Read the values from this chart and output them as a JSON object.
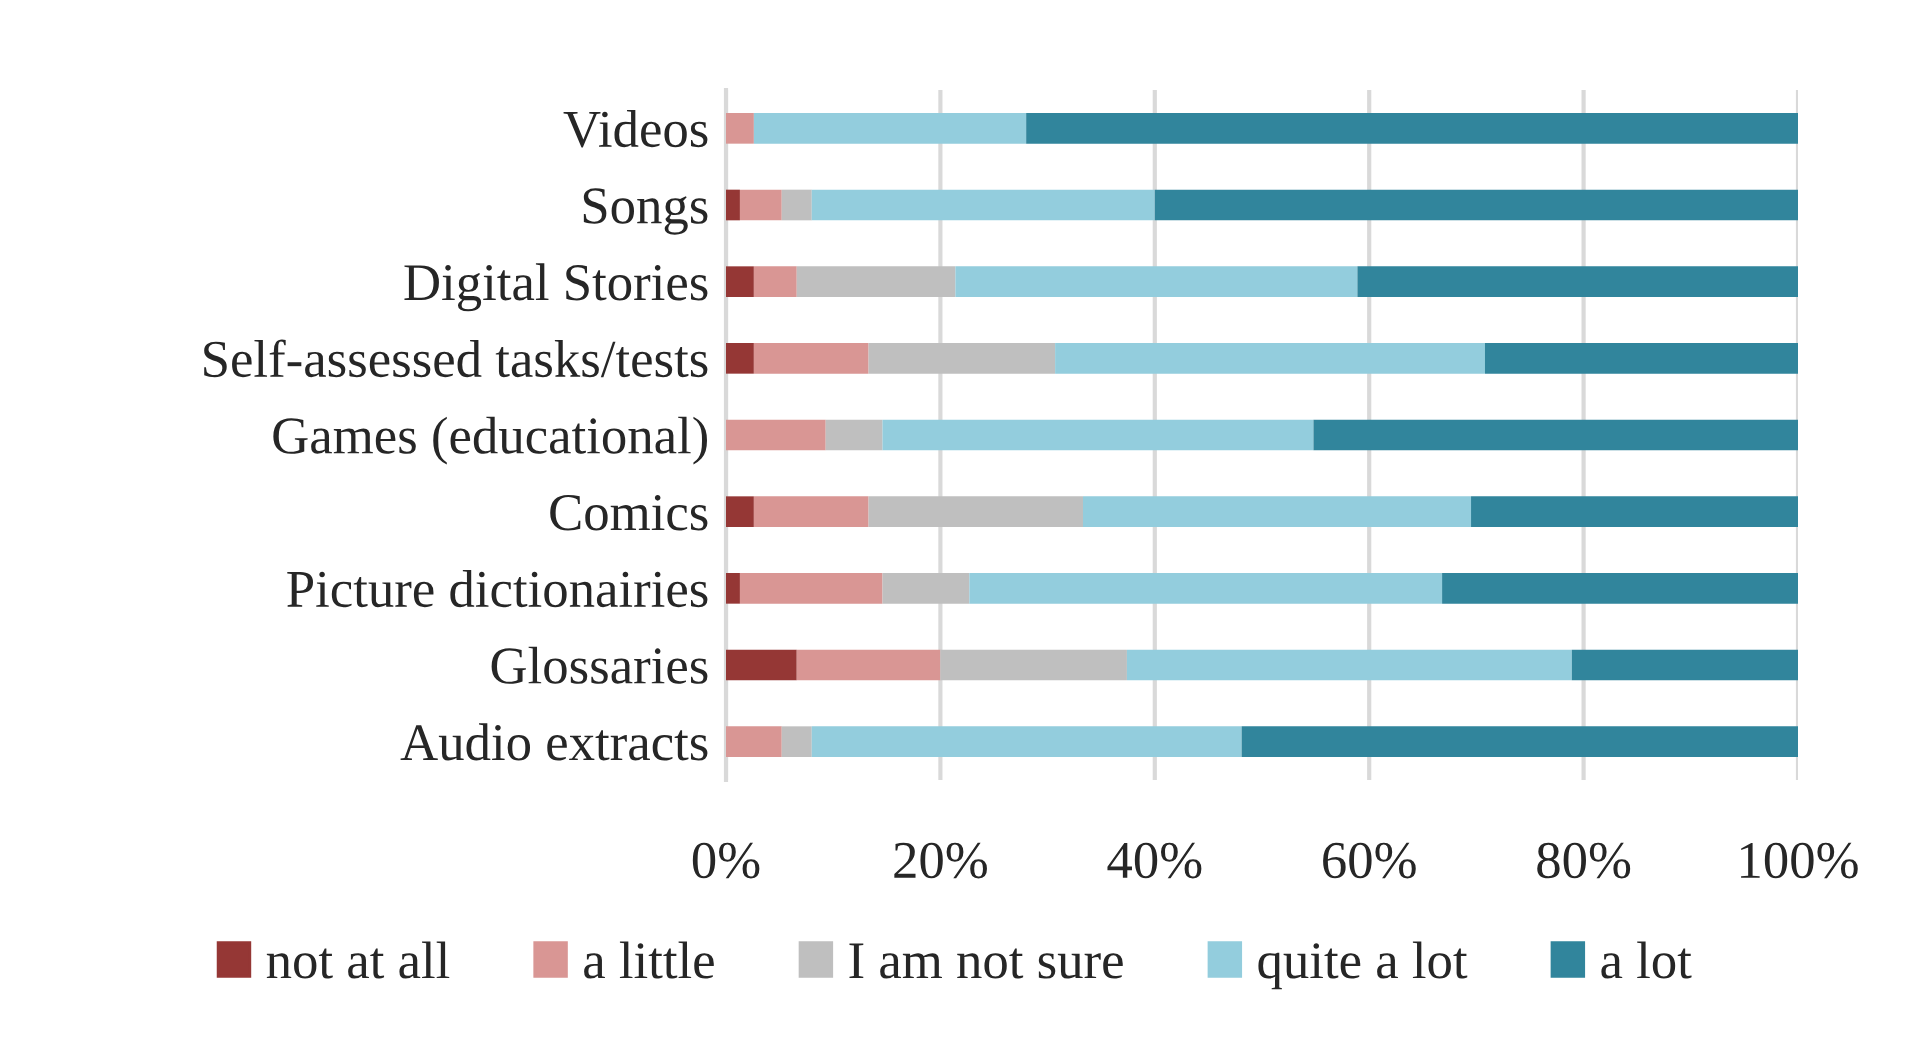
{
  "chart_data": {
    "type": "bar",
    "orientation": "horizontal",
    "stacked": true,
    "categories": [
      "Videos",
      "Songs",
      "Digital Stories",
      "Self-assessed tasks/tests",
      "Games (educational)",
      "Comics",
      "Picture dictionairies",
      "Glossaries",
      "Audio extracts"
    ],
    "series": [
      {
        "name": "not at all",
        "color": "#953735",
        "values": [
          0,
          1.3,
          2.6,
          2.6,
          0,
          2.6,
          1.3,
          6.6,
          0
        ]
      },
      {
        "name": "a little",
        "color": "#d99694",
        "values": [
          2.6,
          3.9,
          4.0,
          10.7,
          9.3,
          10.7,
          13.3,
          13.4,
          5.2
        ]
      },
      {
        "name": "I am not sure",
        "color": "#bfbfbf",
        "values": [
          0,
          2.8,
          14.8,
          17.4,
          5.3,
          20.0,
          8.1,
          17.4,
          2.8
        ]
      },
      {
        "name": "quite a lot",
        "color": "#93cddd",
        "values": [
          25.4,
          32.0,
          37.5,
          40.1,
          40.2,
          36.2,
          44.1,
          41.5,
          40.1
        ]
      },
      {
        "name": "a lot",
        "color": "#31859c",
        "values": [
          72.0,
          60.0,
          41.1,
          29.2,
          45.2,
          30.5,
          33.2,
          21.1,
          51.9
        ]
      }
    ],
    "xlim": [
      0,
      100
    ],
    "xticks": [
      {
        "value": 0,
        "label": "0%"
      },
      {
        "value": 20,
        "label": "20%"
      },
      {
        "value": 40,
        "label": "40%"
      },
      {
        "value": 60,
        "label": "60%"
      },
      {
        "value": 80,
        "label": "80%"
      },
      {
        "value": 100,
        "label": "100%"
      }
    ],
    "grid": "x",
    "legend": "bottom"
  }
}
